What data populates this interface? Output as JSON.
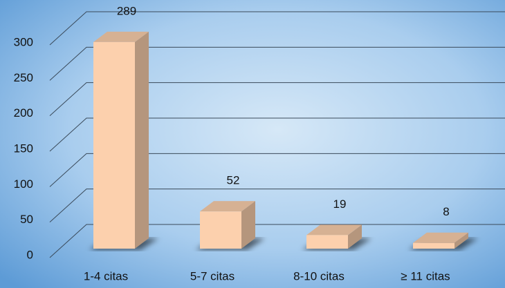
{
  "chart_data": {
    "type": "bar",
    "categories": [
      "1-4 citas",
      "5-7 citas",
      "8-10 citas",
      "≥ 11 citas"
    ],
    "values": [
      289,
      52,
      19,
      8
    ],
    "color": "#fcd0ad",
    "ylim": [
      0,
      300
    ],
    "yticks": [
      0,
      50,
      100,
      150,
      200,
      250,
      300
    ],
    "grid": true
  }
}
